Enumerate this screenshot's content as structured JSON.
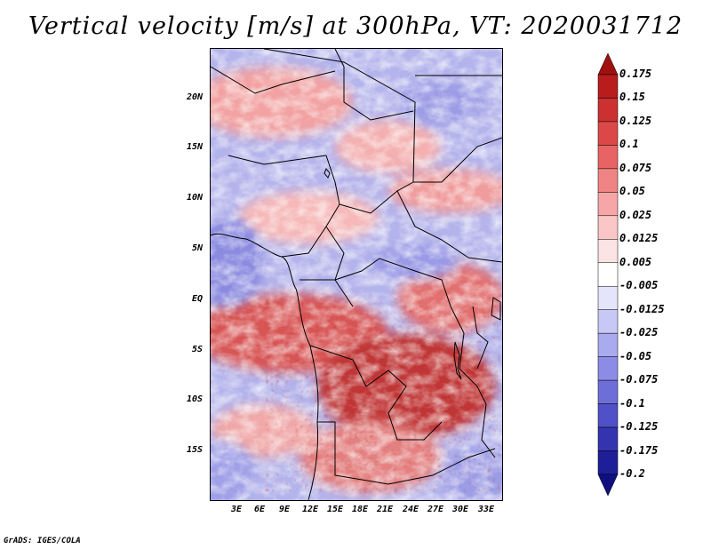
{
  "title": "Vertical velocity [m/s] at 300hPa, VT: 2020031712",
  "credit": "GrADS: IGES/COLA",
  "y_axis_labels": [
    "20N",
    "15N",
    "10N",
    "5N",
    "EQ",
    "5S",
    "10S",
    "15S"
  ],
  "x_axis_labels": [
    "3E",
    "6E",
    "9E",
    "12E",
    "15E",
    "18E",
    "21E",
    "24E",
    "27E",
    "30E",
    "33E"
  ],
  "colorbar": {
    "labels": [
      "0.175",
      "0.15",
      "0.125",
      "0.1",
      "0.075",
      "0.05",
      "0.025",
      "0.0125",
      "0.005",
      "-0.005",
      "-0.0125",
      "-0.025",
      "-0.05",
      "-0.075",
      "-0.1",
      "-0.125",
      "-0.175",
      "-0.2"
    ],
    "colors": [
      "#a01010",
      "#b81c1c",
      "#cc3030",
      "#dc4848",
      "#e86464",
      "#f08484",
      "#f6a6a6",
      "#fac6c6",
      "#fde4e4",
      "#ffffff",
      "#e4e4fb",
      "#c8c8f6",
      "#aaaaef",
      "#8c8ce6",
      "#6e6ed9",
      "#5050c8",
      "#3434b0",
      "#1e1e98",
      "#101080"
    ]
  }
}
